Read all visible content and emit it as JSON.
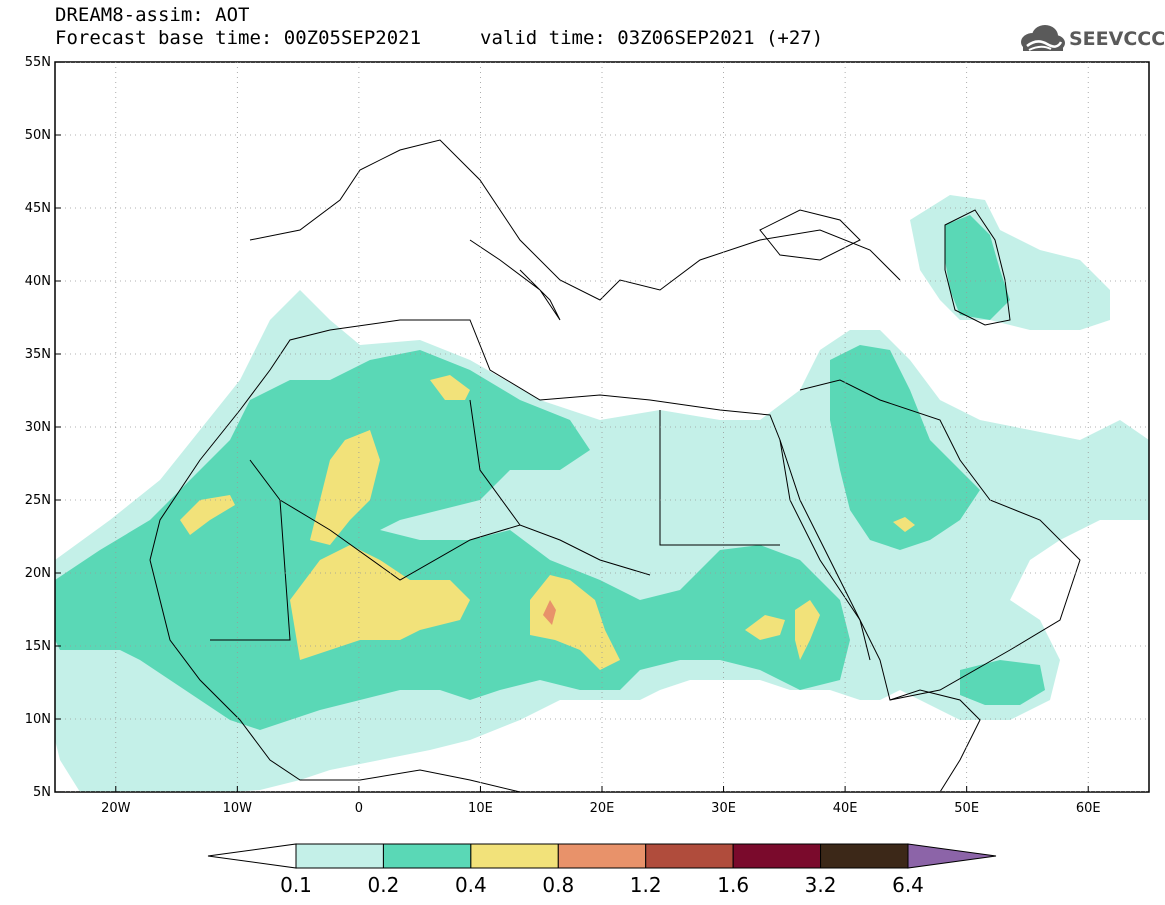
{
  "header": {
    "title": "DREAM8-assim: AOT",
    "forecast": "Forecast base time: 00Z05SEP2021",
    "valid": "valid time: 03Z06SEP2021 (+27)"
  },
  "logo": {
    "text": "SEEVCCC",
    "icon": "cloud-icon"
  },
  "map": {
    "lat_labels": [
      "55N",
      "50N",
      "45N",
      "40N",
      "35N",
      "30N",
      "25N",
      "20N",
      "15N",
      "10N",
      "5N"
    ],
    "lon_labels": [
      "20W",
      "10W",
      "0",
      "10E",
      "20E",
      "30E",
      "40E",
      "50E",
      "60E"
    ],
    "extent": {
      "lon_min": -25,
      "lon_max": 65,
      "lat_min": 5,
      "lat_max": 55
    }
  },
  "legend": {
    "colors": [
      "#ffffff",
      "#c4f0e8",
      "#5ad8b6",
      "#f2e27a",
      "#e8926a",
      "#b04c3c",
      "#7a0a2c",
      "#3c2818",
      "#8c64a8"
    ],
    "values": [
      "0.1",
      "0.2",
      "0.4",
      "0.8",
      "1.2",
      "1.6",
      "3.2",
      "6.4"
    ]
  }
}
